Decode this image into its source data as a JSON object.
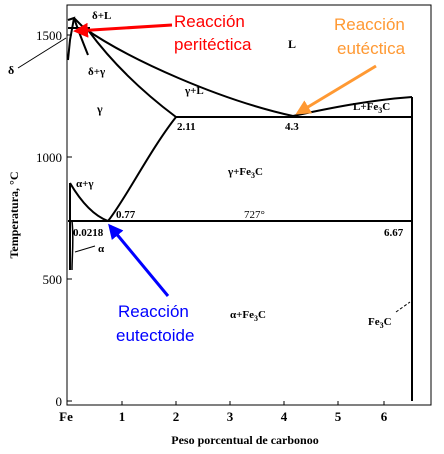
{
  "axes": {
    "y_label": "Temperatura, °C",
    "x_label": "Peso porcentual de carbonoo",
    "y_ticks": [
      "1500",
      "1000",
      "500",
      "0"
    ],
    "x_ticks": [
      "Fe",
      "1",
      "2",
      "3",
      "4",
      "5",
      "6"
    ]
  },
  "phases": {
    "delta_L": "δ+L",
    "L": "L",
    "delta": "δ",
    "delta_gamma": "δ+γ",
    "gamma": "γ",
    "gamma_L": "γ+L",
    "L_Fe3C": "L+Fe",
    "L_Fe3C_sub": "3",
    "L_Fe3C_end": "C",
    "gamma_Fe3C": "γ+Fe",
    "gamma_Fe3C_sub": "3",
    "gamma_Fe3C_end": "C",
    "alpha_gamma": "α+γ",
    "alpha": "α",
    "alpha_Fe3C": "α+Fe",
    "alpha_Fe3C_sub": "3",
    "alpha_Fe3C_end": "C",
    "Fe3C": "Fe",
    "Fe3C_sub": "3",
    "Fe3C_end": "C"
  },
  "points": {
    "c_2_11": "2.11",
    "c_4_3": "4.3",
    "c_0_77": "0.77",
    "t_727": "727°",
    "c_0_0218": "0.0218",
    "c_6_67": "6.67"
  },
  "annotations": {
    "peritectic_line1": "Reacción",
    "peritectic_line2": "peritéctica",
    "eutectic_line1": "Reacción",
    "eutectic_line2": "eutéctica",
    "eutectoid_line1": "Reacción",
    "eutectoid_line2": "eutectoide"
  },
  "colors": {
    "peritectic": "#ff0000",
    "eutectic": "#ff9933",
    "eutectoid": "#0000ff",
    "lines": "#000000"
  }
}
